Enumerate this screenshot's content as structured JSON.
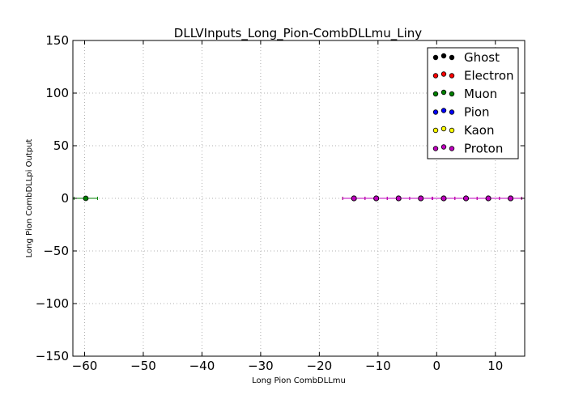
{
  "chart_data": {
    "type": "scatter",
    "title": "DLLVInputs_Long_Pion-CombDLLmu_Liny",
    "xlabel": "Long Pion CombDLLmu",
    "ylabel": "Long Pion CombDLLpi Output",
    "xlim": [
      -62,
      15
    ],
    "ylim": [
      -150,
      150
    ],
    "xticks": [
      -60,
      -50,
      -40,
      -30,
      -20,
      -10,
      0,
      10
    ],
    "yticks": [
      -150,
      -100,
      -50,
      0,
      50,
      100,
      150
    ],
    "grid": true,
    "legend": "top-right",
    "series": [
      {
        "name": "Ghost",
        "color": "#000000",
        "x": [
          -14.1,
          -10.3,
          -6.5,
          -2.7,
          1.2,
          5.0,
          8.8,
          12.6
        ],
        "y": [
          0,
          0,
          0,
          0,
          0,
          0,
          0,
          0
        ],
        "xerr": 1.9
      },
      {
        "name": "Electron",
        "color": "#ff0000",
        "x": [
          -14.1,
          -10.3,
          -6.5,
          -2.7,
          1.2,
          5.0,
          8.8,
          12.6
        ],
        "y": [
          0,
          0,
          0,
          0,
          0,
          0,
          0,
          0
        ],
        "xerr": 1.9
      },
      {
        "name": "Muon",
        "color": "#008000",
        "x": [
          -59.8
        ],
        "y": [
          0
        ],
        "xerr": 2.0
      },
      {
        "name": "Pion",
        "color": "#0000ff",
        "x": [
          -14.1,
          -10.3,
          -6.5,
          -2.7,
          1.2,
          5.0,
          8.8,
          12.6
        ],
        "y": [
          0,
          0,
          0,
          0,
          0,
          0,
          0,
          0
        ],
        "xerr": 1.9
      },
      {
        "name": "Kaon",
        "color": "#ffff00",
        "x": [
          -14.1,
          -10.3,
          -6.5,
          -2.7,
          1.2,
          5.0,
          8.8,
          12.6
        ],
        "y": [
          0,
          0,
          0,
          0,
          0,
          0,
          0,
          0
        ],
        "xerr": 1.9
      },
      {
        "name": "Proton",
        "color": "#bf00bf",
        "x": [
          -14.1,
          -10.3,
          -6.5,
          -2.7,
          1.2,
          5.0,
          8.8,
          12.6
        ],
        "y": [
          0,
          0,
          0,
          0,
          0,
          0,
          0,
          0
        ],
        "xerr": 1.9
      }
    ]
  }
}
